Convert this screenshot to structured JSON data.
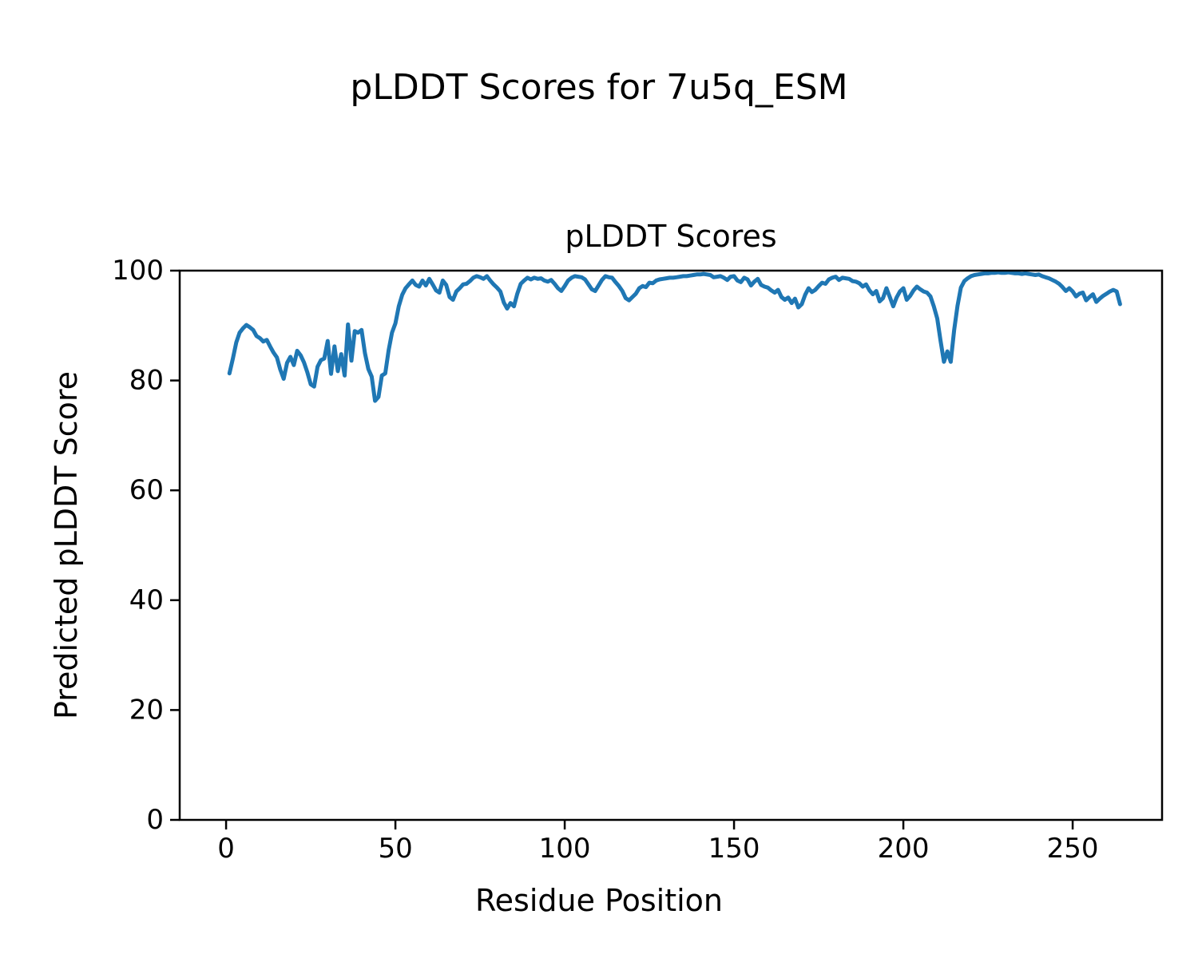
{
  "figure": {
    "suptitle": "pLDDT Scores for 7u5q_ESM"
  },
  "chart_data": {
    "type": "line",
    "title": "pLDDT Scores",
    "xlabel": "Residue Position",
    "ylabel": "Predicted pLDDT Score",
    "series_name": "pLDDT",
    "line_color": "#1f77b4",
    "grid": false,
    "legend": false,
    "xlim": [
      -13.7,
      276.4
    ],
    "ylim": [
      0,
      100
    ],
    "xticks": [
      0,
      50,
      100,
      150,
      200,
      250
    ],
    "yticks": [
      0,
      20,
      40,
      60,
      80,
      100
    ],
    "x_start": 1,
    "values": [
      81.3,
      84.0,
      86.9,
      88.7,
      89.5,
      90.1,
      89.7,
      89.2,
      88.1,
      87.7,
      87.1,
      87.4,
      86.2,
      85.1,
      84.2,
      82.0,
      80.3,
      83.2,
      84.3,
      82.8,
      85.4,
      84.6,
      83.3,
      81.5,
      79.3,
      78.9,
      82.5,
      83.7,
      84.0,
      87.2,
      81.2,
      86.2,
      81.7,
      84.8,
      80.9,
      90.2,
      83.6,
      89.0,
      88.7,
      89.2,
      85.0,
      82.1,
      80.7,
      76.3,
      77.0,
      80.9,
      81.3,
      85.5,
      88.7,
      90.4,
      93.5,
      95.6,
      96.8,
      97.5,
      98.2,
      97.4,
      97.1,
      98.2,
      97.3,
      98.5,
      97.5,
      96.4,
      96.0,
      98.2,
      97.4,
      95.2,
      94.7,
      96.2,
      96.8,
      97.5,
      97.6,
      98.1,
      98.7,
      99.0,
      98.8,
      98.5,
      99.0,
      98.2,
      97.5,
      96.9,
      96.2,
      94.2,
      93.1,
      94.1,
      93.5,
      95.8,
      97.6,
      98.2,
      98.7,
      98.4,
      98.7,
      98.5,
      98.6,
      98.2,
      98.0,
      98.3,
      97.6,
      96.8,
      96.3,
      97.2,
      98.2,
      98.7,
      99.0,
      98.9,
      98.8,
      98.4,
      97.5,
      96.6,
      96.3,
      97.3,
      98.3,
      99.0,
      98.8,
      98.7,
      97.9,
      97.2,
      96.3,
      95.0,
      94.6,
      95.2,
      95.8,
      96.8,
      97.2,
      97.0,
      97.8,
      97.7,
      98.2,
      98.4,
      98.5,
      98.6,
      98.7,
      98.7,
      98.8,
      98.9,
      99.0,
      99.0,
      99.1,
      99.2,
      99.3,
      99.3,
      99.4,
      99.3,
      99.2,
      98.8,
      98.9,
      99.0,
      98.7,
      98.3,
      98.9,
      99.0,
      98.2,
      97.9,
      98.7,
      98.4,
      97.3,
      98.0,
      98.5,
      97.4,
      97.1,
      96.9,
      96.4,
      96.0,
      96.5,
      95.2,
      94.7,
      95.1,
      94.1,
      94.9,
      93.3,
      93.9,
      95.6,
      96.8,
      96.1,
      96.5,
      97.2,
      97.8,
      97.6,
      98.4,
      98.7,
      98.9,
      98.3,
      98.7,
      98.6,
      98.5,
      98.1,
      98.0,
      97.7,
      97.1,
      97.5,
      96.4,
      95.7,
      96.3,
      94.4,
      95.0,
      96.8,
      95.2,
      93.5,
      95.1,
      96.2,
      96.8,
      94.7,
      95.4,
      96.4,
      97.1,
      96.6,
      96.2,
      96.0,
      95.3,
      93.5,
      91.3,
      87.2,
      83.4,
      85.3,
      83.4,
      89.2,
      93.6,
      96.9,
      98.1,
      98.6,
      99.0,
      99.2,
      99.3,
      99.4,
      99.5,
      99.5,
      99.6,
      99.6,
      99.7,
      99.6,
      99.6,
      99.7,
      99.6,
      99.5,
      99.5,
      99.4,
      99.5,
      99.4,
      99.3,
      99.2,
      99.3,
      99.0,
      98.8,
      98.6,
      98.3,
      98.0,
      97.6,
      97.0,
      96.3,
      96.8,
      96.2,
      95.3,
      95.8,
      96.0,
      94.6,
      95.2,
      95.7,
      94.3,
      94.9,
      95.4,
      95.8,
      96.2,
      96.5,
      96.2,
      93.9
    ]
  }
}
